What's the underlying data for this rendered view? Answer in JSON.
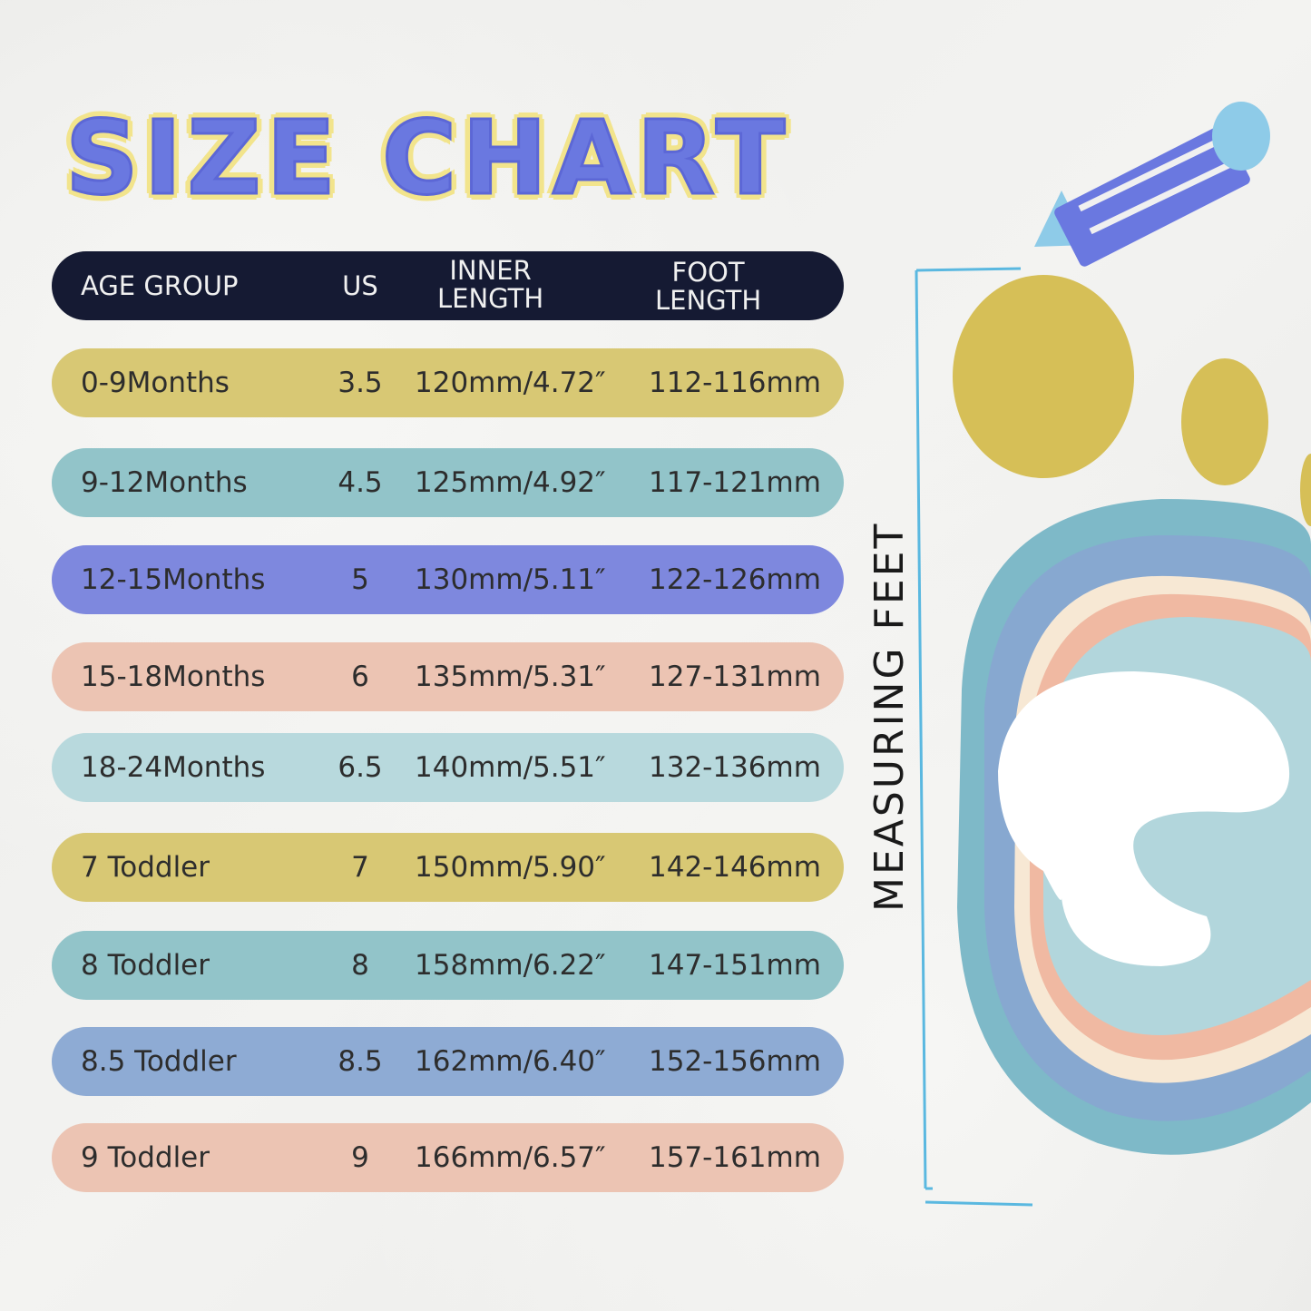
{
  "title": "SIZE CHART",
  "side_label": "MEASURING FEET",
  "header": {
    "age_group": "AGE GROUP",
    "us": "US",
    "inner_length_1": "INNER",
    "inner_length_2": "LENGTH",
    "foot_length_1": "FOOT",
    "foot_length_2": "LENGTH"
  },
  "colors": {
    "header": "#151a33",
    "title": "#6a78e0",
    "title_outline": "#f2e48c"
  },
  "rows": [
    {
      "age": "0-9Months",
      "us": "3.5",
      "inner": "120mm/4.72″",
      "foot": "112-116mm",
      "color": "#d8c874"
    },
    {
      "age": "9-12Months",
      "us": "4.5",
      "inner": "125mm/4.92″",
      "foot": "117-121mm",
      "color": "#92c4c9"
    },
    {
      "age": "12-15Months",
      "us": "5",
      "inner": "130mm/5.11″",
      "foot": "122-126mm",
      "color": "#7e88de"
    },
    {
      "age": "15-18Months",
      "us": "6",
      "inner": "135mm/5.31″",
      "foot": "127-131mm",
      "color": "#ecc4b3"
    },
    {
      "age": "18-24Months",
      "us": "6.5",
      "inner": "140mm/5.51″",
      "foot": "132-136mm",
      "color": "#b8d9dd"
    },
    {
      "age": "7 Toddler",
      "us": "7",
      "inner": "150mm/5.90″",
      "foot": "142-146mm",
      "color": "#d8c874"
    },
    {
      "age": "8 Toddler",
      "us": "8",
      "inner": "158mm/6.22″",
      "foot": "147-151mm",
      "color": "#92c4c9"
    },
    {
      "age": "8.5 Toddler",
      "us": "8.5",
      "inner": "162mm/6.40″",
      "foot": "152-156mm",
      "color": "#8eabd4"
    },
    {
      "age": "9 Toddler",
      "us": "9",
      "inner": "166mm/6.57″",
      "foot": "157-161mm",
      "color": "#ecc4b3"
    }
  ]
}
